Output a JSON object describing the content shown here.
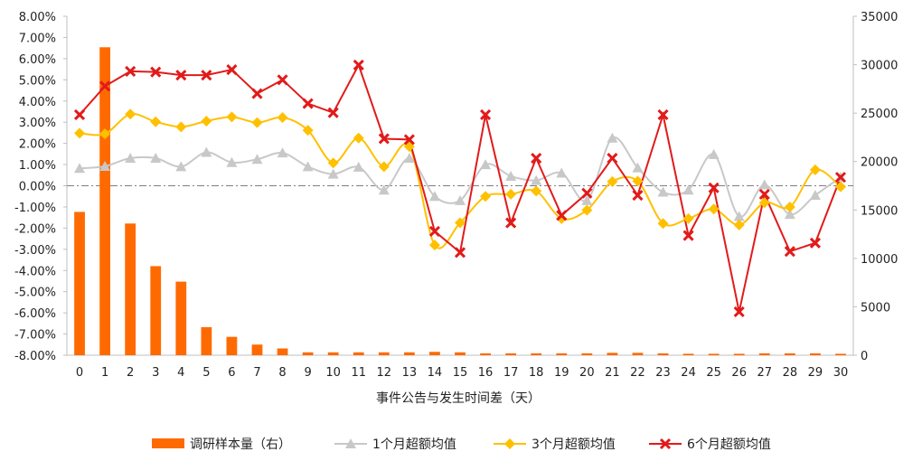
{
  "chart_data": {
    "type": "bar+line",
    "xlabel": "事件公告与发生时间差（天）",
    "x": [
      0,
      1,
      2,
      3,
      4,
      5,
      6,
      7,
      8,
      9,
      10,
      11,
      12,
      13,
      14,
      15,
      16,
      17,
      18,
      19,
      20,
      21,
      22,
      23,
      24,
      25,
      26,
      27,
      28,
      29,
      30
    ],
    "x_tick_labels": [
      "0",
      "1",
      "2",
      "3",
      "4",
      "5",
      "6",
      "7",
      "8",
      "9",
      "10",
      "11",
      "12",
      "13",
      "14",
      "15",
      "16",
      "17",
      "18",
      "19",
      "20",
      "21",
      "22",
      "23",
      "24",
      "25",
      "26",
      "27",
      "28",
      "29",
      "30"
    ],
    "y_left": {
      "min": -0.08,
      "max": 0.08,
      "step": 0.01,
      "tick_labels": [
        "8.00%",
        "7.00%",
        "6.00%",
        "5.00%",
        "4.00%",
        "3.00%",
        "2.00%",
        "1.00%",
        "0.00%",
        "-1.00%",
        "-2.00%",
        "-3.00%",
        "-4.00%",
        "-5.00%",
        "-6.00%",
        "-7.00%",
        "-8.00%"
      ]
    },
    "y_right": {
      "min": 0,
      "max": 35000,
      "step": 5000,
      "tick_labels": [
        "35000",
        "30000",
        "25000",
        "20000",
        "15000",
        "10000",
        "5000",
        "0"
      ]
    },
    "zero_line": "dash-dot",
    "bar_series": {
      "name": "调研样本量（右）",
      "color": "#ff6a00",
      "values": [
        14800,
        31800,
        13600,
        9200,
        7600,
        2900,
        1900,
        1100,
        700,
        300,
        300,
        300,
        300,
        300,
        350,
        300,
        200,
        200,
        200,
        200,
        200,
        250,
        250,
        200,
        150,
        150,
        150,
        200,
        200,
        200,
        150
      ]
    },
    "series": [
      {
        "name": "1个月超额均值",
        "color": "#c8c8c8",
        "marker": "triangle",
        "values": [
          0.0082,
          0.0092,
          0.013,
          0.013,
          0.009,
          0.0158,
          0.011,
          0.0125,
          0.0155,
          0.009,
          0.0055,
          0.0088,
          -0.002,
          0.013,
          -0.005,
          -0.007,
          0.01,
          0.0045,
          0.0025,
          0.006,
          -0.007,
          0.0225,
          0.0085,
          -0.003,
          -0.002,
          0.0148,
          -0.0145,
          0.0005,
          -0.0135,
          -0.0045,
          0.004
        ]
      },
      {
        "name": "3个月超额均值",
        "color": "#ffc000",
        "marker": "diamond",
        "values": [
          0.0248,
          0.0245,
          0.0338,
          0.0302,
          0.0278,
          0.0305,
          0.0325,
          0.0298,
          0.0322,
          0.0262,
          0.0108,
          0.0225,
          0.009,
          0.0185,
          -0.028,
          -0.0175,
          -0.005,
          -0.004,
          -0.0025,
          -0.0155,
          -0.0115,
          0.002,
          0.0022,
          -0.0178,
          -0.0155,
          -0.011,
          -0.0185,
          -0.008,
          -0.01,
          0.0075,
          -0.0005
        ]
      },
      {
        "name": "6个月超额均值",
        "color": "#e21a1a",
        "marker": "x",
        "values": [
          0.0335,
          0.047,
          0.054,
          0.0537,
          0.0522,
          0.0522,
          0.0548,
          0.0435,
          0.05,
          0.0388,
          0.0345,
          0.057,
          0.0222,
          0.0218,
          -0.0215,
          -0.0315,
          0.0335,
          -0.0175,
          0.013,
          -0.014,
          -0.0035,
          0.013,
          -0.0045,
          0.0335,
          -0.0235,
          -0.001,
          -0.0595,
          -0.004,
          -0.031,
          -0.027,
          0.004
        ]
      }
    ],
    "legend": {
      "placement": "bottom",
      "entries": [
        "调研样本量（右）",
        "1个月超额均值",
        "3个月超额均值",
        "6个月超额均值"
      ]
    }
  }
}
